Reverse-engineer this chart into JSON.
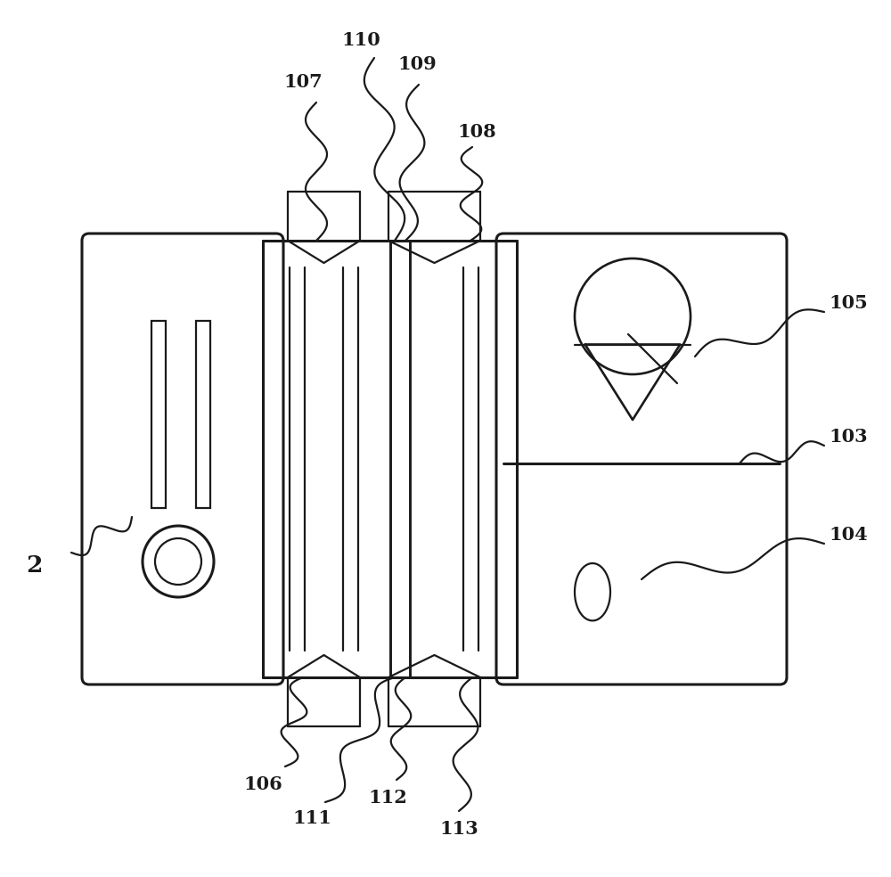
{
  "bg_color": "#ffffff",
  "lc": "#1a1a1a",
  "lw": 1.6,
  "tlw": 2.2,
  "fig_width": 10.0,
  "fig_height": 9.84
}
